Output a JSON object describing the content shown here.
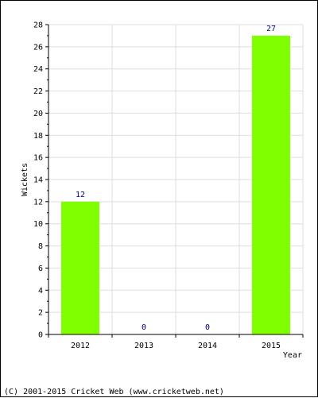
{
  "chart_data": {
    "type": "bar",
    "categories": [
      "2012",
      "2013",
      "2014",
      "2015"
    ],
    "values": [
      12,
      0,
      0,
      27
    ],
    "value_labels": [
      "12",
      "0",
      "0",
      "27"
    ],
    "xlabel": "Year",
    "ylabel": "Wickets",
    "ylim": [
      0,
      28
    ],
    "yticks": [
      "0",
      "2",
      "4",
      "6",
      "8",
      "10",
      "12",
      "14",
      "16",
      "18",
      "20",
      "22",
      "24",
      "26",
      "28"
    ],
    "grid": true,
    "bar_color": "#80ff00",
    "value_label_color": "#000080"
  },
  "footer": {
    "copyright": "(C) 2001-2015 Cricket Web (www.cricketweb.net)"
  }
}
